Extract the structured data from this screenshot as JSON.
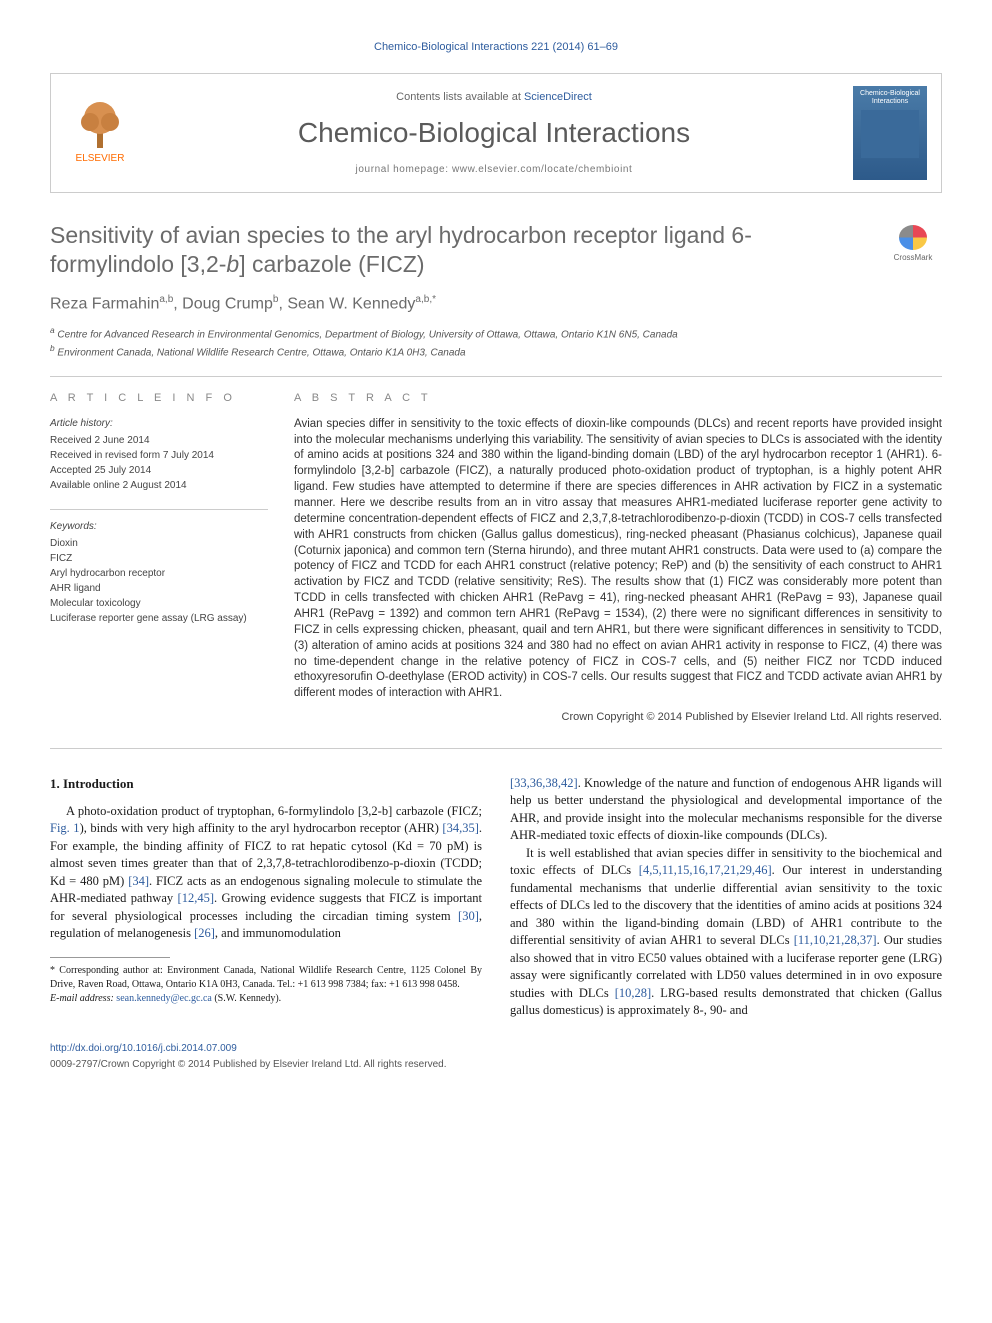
{
  "running_head": "Chemico-Biological Interactions 221 (2014) 61–69",
  "header": {
    "contents_prefix": "Contents lists available at ",
    "contents_link": "ScienceDirect",
    "journal": "Chemico-Biological Interactions",
    "homepage_prefix": "journal homepage: ",
    "homepage": "www.elsevier.com/locate/chembioint",
    "publisher_logo_text": "ELSEVIER",
    "cover_text": "Chemico-Biological Interactions"
  },
  "crossmark_label": "CrossMark",
  "title": "Sensitivity of avian species to the aryl hydrocarbon receptor ligand 6-formylindolo [3,2-b] carbazole (FICZ)",
  "authors_html": "Reza Farmahin<sup>a,b</sup>, Doug Crump<sup>b</sup>, Sean W. Kennedy<sup>a,b,*</sup>",
  "affiliations": [
    "a Centre for Advanced Research in Environmental Genomics, Department of Biology, University of Ottawa, Ottawa, Ontario K1N 6N5, Canada",
    "b Environment Canada, National Wildlife Research Centre, Ottawa, Ontario K1A 0H3, Canada"
  ],
  "article_info": {
    "heading": "A R T I C L E   I N F O",
    "history_label": "Article history:",
    "history": [
      "Received 2 June 2014",
      "Received in revised form 7 July 2014",
      "Accepted 25 July 2014",
      "Available online 2 August 2014"
    ],
    "keywords_label": "Keywords:",
    "keywords": [
      "Dioxin",
      "FICZ",
      "Aryl hydrocarbon receptor",
      "AHR ligand",
      "Molecular toxicology",
      "Luciferase reporter gene assay (LRG assay)"
    ]
  },
  "abstract": {
    "heading": "A B S T R A C T",
    "text": "Avian species differ in sensitivity to the toxic effects of dioxin-like compounds (DLCs) and recent reports have provided insight into the molecular mechanisms underlying this variability. The sensitivity of avian species to DLCs is associated with the identity of amino acids at positions 324 and 380 within the ligand-binding domain (LBD) of the aryl hydrocarbon receptor 1 (AHR1). 6-formylindolo [3,2-b] carbazole (FICZ), a naturally produced photo-oxidation product of tryptophan, is a highly potent AHR ligand. Few studies have attempted to determine if there are species differences in AHR activation by FICZ in a systematic manner. Here we describe results from an in vitro assay that measures AHR1-mediated luciferase reporter gene activity to determine concentration-dependent effects of FICZ and 2,3,7,8-tetrachlorodibenzo-p-dioxin (TCDD) in COS-7 cells transfected with AHR1 constructs from chicken (Gallus gallus domesticus), ring-necked pheasant (Phasianus colchicus), Japanese quail (Coturnix japonica) and common tern (Sterna hirundo), and three mutant AHR1 constructs. Data were used to (a) compare the potency of FICZ and TCDD for each AHR1 construct (relative potency; ReP) and (b) the sensitivity of each construct to AHR1 activation by FICZ and TCDD (relative sensitivity; ReS). The results show that (1) FICZ was considerably more potent than TCDD in cells transfected with chicken AHR1 (RePavg = 41), ring-necked pheasant AHR1 (RePavg = 93), Japanese quail AHR1 (RePavg = 1392) and common tern AHR1 (RePavg = 1534), (2) there were no significant differences in sensitivity to FICZ in cells expressing chicken, pheasant, quail and tern AHR1, but there were significant differences in sensitivity to TCDD, (3) alteration of amino acids at positions 324 and 380 had no effect on avian AHR1 activity in response to FICZ, (4) there was no time-dependent change in the relative potency of FICZ in COS-7 cells, and (5) neither FICZ nor TCDD induced ethoxyresorufin O-deethylase (EROD activity) in COS-7 cells. Our results suggest that FICZ and TCDD activate avian AHR1 by different modes of interaction with AHR1.",
    "copyright": "Crown Copyright © 2014 Published by Elsevier Ireland Ltd. All rights reserved."
  },
  "body": {
    "section_heading": "1. Introduction",
    "p1_a": "A photo-oxidation product of tryptophan, 6-formylindolo [3,2-b] carbazole (FICZ; ",
    "p1_fig": "Fig. 1",
    "p1_b": "), binds with very high affinity to the aryl hydrocarbon receptor (AHR) ",
    "p1_ref1": "[34,35]",
    "p1_c": ". For example, the binding affinity of FICZ to rat hepatic cytosol (Kd = 70 pM) is almost seven times greater than that of 2,3,7,8-tetrachlorodibenzo-p-dioxin (TCDD; Kd = 480 pM) ",
    "p1_ref2": "[34]",
    "p1_d": ". FICZ acts as an endogenous signaling molecule to stimulate the AHR-mediated pathway ",
    "p1_ref3": "[12,45]",
    "p1_e": ". Growing evidence suggests that FICZ is important for several physiological processes including the circadian timing system ",
    "p1_ref4": "[30]",
    "p1_f": ", regulation of melanogenesis ",
    "p1_ref5": "[26]",
    "p1_g": ", and immunomodulation ",
    "p2_ref1": "[33,36,38,42]",
    "p2_a": ". Knowledge of the nature and function of endogenous AHR ligands will help us better understand the physiological and developmental importance of the AHR, and provide insight into the molecular mechanisms responsible for the diverse AHR-mediated toxic effects of dioxin-like compounds (DLCs).",
    "p3_a": "It is well established that avian species differ in sensitivity to the biochemical and toxic effects of DLCs ",
    "p3_ref1": "[4,5,11,15,16,17,21,29,46]",
    "p3_b": ". Our interest in understanding fundamental mechanisms that underlie differential avian sensitivity to the toxic effects of DLCs led to the discovery that the identities of amino acids at positions 324 and 380 within the ligand-binding domain (LBD) of AHR1 contribute to the differential sensitivity of avian AHR1 to several DLCs ",
    "p3_ref2": "[11,10,21,28,37]",
    "p3_c": ". Our studies also showed that in vitro EC50 values obtained with a luciferase reporter gene (LRG) assay were significantly correlated with LD50 values determined in in ovo exposure studies with DLCs ",
    "p3_ref3": "[10,28]",
    "p3_d": ". LRG-based results demonstrated that chicken (Gallus gallus domesticus) is approximately 8-, 90- and"
  },
  "footnote": {
    "corr": "* Corresponding author at: Environment Canada, National Wildlife Research Centre, 1125 Colonel By Drive, Raven Road, Ottawa, Ontario K1A 0H3, Canada. Tel.: +1 613 998 7384; fax: +1 613 998 0458.",
    "email_label": "E-mail address: ",
    "email": "sean.kennedy@ec.gc.ca",
    "email_tail": " (S.W. Kennedy)."
  },
  "footer": {
    "doi": "http://dx.doi.org/10.1016/j.cbi.2014.07.009",
    "copy": "0009-2797/Crown Copyright © 2014 Published by Elsevier Ireland Ltd. All rights reserved."
  },
  "colors": {
    "link": "#2e5c9e",
    "heading_gray": "#6b6b6b",
    "border": "#cccccc",
    "orange": "#ff6b00"
  }
}
